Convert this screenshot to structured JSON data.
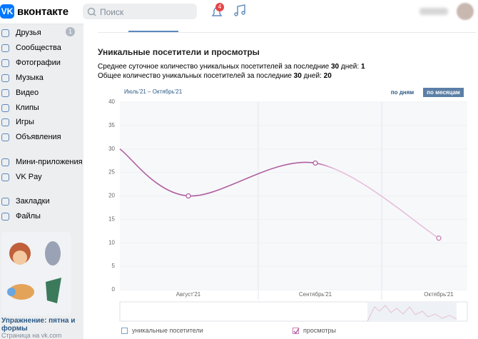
{
  "header": {
    "logo": "вконтакте",
    "search": "Поиск",
    "notifications": 4
  },
  "sidebar": {
    "items": [
      "Друзья",
      "Сообщества",
      "Фотографии",
      "Музыка",
      "Видео",
      "Клипы",
      "Игры",
      "Объявления",
      "Мини-приложения",
      "VK Pay",
      "Закладки",
      "Файлы"
    ],
    "friends_badge": 1,
    "promo": {
      "title": "Упражнение: пятна и формы",
      "subtitle": "Страница на vk.com"
    }
  },
  "stats": {
    "title": "Уникальные посетители и просмотры",
    "daily": {
      "text": "Среднее суточное количество уникальных посетителей за последние",
      "days": 30,
      "suffix": "дней:",
      "value": 1
    },
    "total": {
      "text": "Общее количество уникальных посетителей за последние",
      "days": 30,
      "suffix": "дней:",
      "value": 20
    },
    "period": "Июль'21 – Октябрь'21",
    "buttons": [
      "по дням",
      "по месяцам"
    ]
  },
  "chart_data": {
    "type": "line",
    "categories": [
      null,
      "Август'21",
      "Сентябрь'21",
      "Октябрь'21"
    ],
    "series": [
      {
        "color": "#b05fa0",
        "values": [
          30,
          20,
          27,
          11
        ]
      }
    ],
    "ylim": [
      0,
      40
    ],
    "yticks": [
      0,
      5,
      10,
      15,
      20,
      25,
      30,
      35,
      40
    ],
    "legend": [
      {
        "label": "уникальные посетители",
        "checked": false
      },
      {
        "label": "просмотры",
        "checked": true
      }
    ]
  }
}
